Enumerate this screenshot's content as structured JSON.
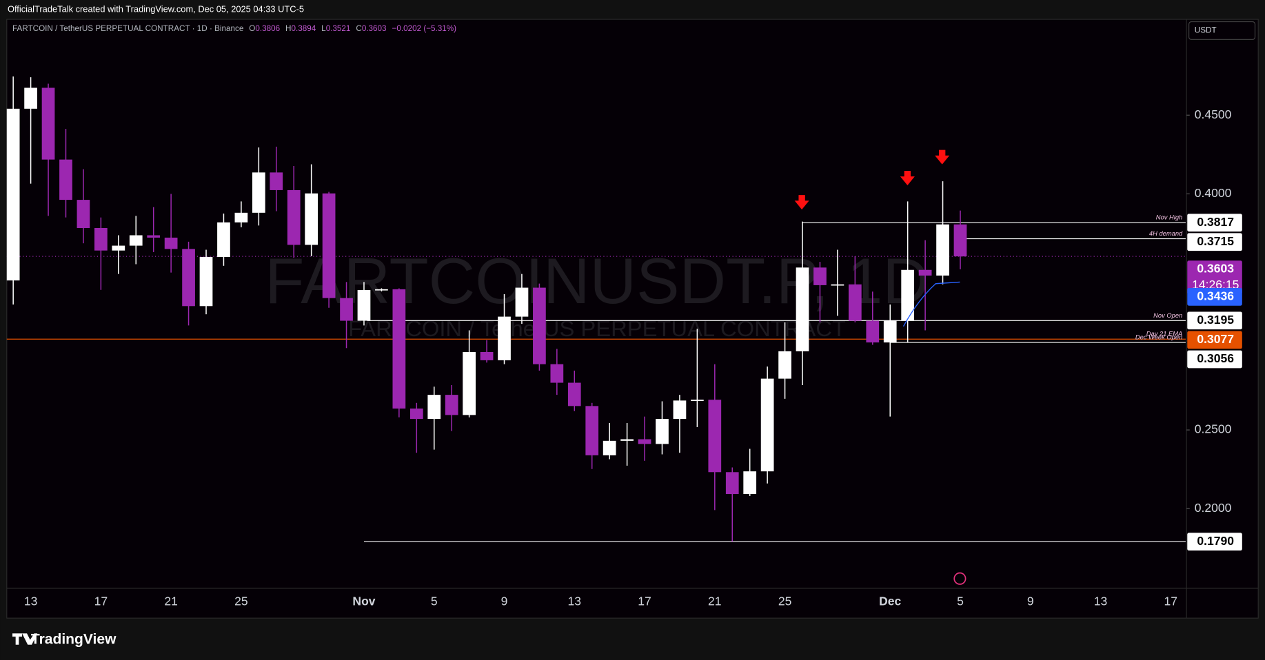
{
  "header": {
    "text": "OfficialTradeTalk created with TradingView.com, Dec 05, 2025 04:33 UTC-5"
  },
  "footer": {
    "brand": "TradingView"
  },
  "chart_data": {
    "type": "candlestick",
    "title": "FARTCOIN / TetherUS PERPETUAL CONTRACT · 1D · Binance",
    "legend_labels": {
      "open": "O",
      "high": "H",
      "low": "L",
      "close": "C"
    },
    "change_label": "−0.0202 (−5.31%)",
    "watermark": "FARTCOINUSDT.P, 1D",
    "watermark_subtitle": "FARTCOIN / TetherUS PERPETUAL CONTRACT",
    "currency": "USDT",
    "categories": [
      null,
      "13",
      null,
      null,
      null,
      "17",
      null,
      null,
      null,
      "21",
      null,
      null,
      null,
      "25",
      null,
      null,
      null,
      null,
      null,
      null,
      "Nov",
      null,
      null,
      null,
      "5",
      null,
      null,
      null,
      "9",
      null,
      null,
      null,
      "13",
      null,
      null,
      null,
      "17",
      null,
      null,
      null,
      "21",
      null,
      null,
      null,
      "25",
      null,
      null,
      null,
      null,
      null,
      "Dec",
      null,
      null,
      null,
      "5",
      null,
      null,
      null,
      "9",
      null,
      null,
      null,
      "13",
      null,
      null,
      null,
      "17"
    ],
    "open": [
      0.345,
      0.4541,
      0.4674,
      0.4218,
      0.3962,
      0.3783,
      0.364,
      0.3671,
      0.3737,
      0.3722,
      0.365,
      0.3287,
      0.3599,
      0.3819,
      0.388,
      0.4136,
      0.4024,
      0.3676,
      0.4003,
      0.3338,
      0.3194,
      0.3389,
      0.3394,
      0.2636,
      0.257,
      0.2723,
      0.2595,
      0.2995,
      0.2943,
      0.322,
      0.3404,
      0.2918,
      0.28,
      0.2652,
      0.2339,
      0.2431,
      0.2441,
      0.2411,
      0.257,
      0.2687,
      0.2692,
      0.2232,
      0.2093,
      0.2237,
      0.2826,
      0.3,
      0.3532,
      0.342,
      0.3425,
      0.3194,
      0.3056,
      0.3194,
      0.3517,
      0.3481,
      0.3806,
      null,
      null,
      null,
      null,
      null,
      null,
      null,
      null,
      null,
      null,
      null,
      null
    ],
    "high": [
      0.4746,
      0.4741,
      0.47,
      0.4413,
      0.4157,
      0.385,
      0.3737,
      0.386,
      0.3916,
      0.4,
      0.3696,
      0.3645,
      0.3875,
      0.3952,
      0.4295,
      0.43,
      0.4177,
      0.4188,
      0.4013,
      0.344,
      0.344,
      0.34,
      0.34,
      0.2672,
      0.2775,
      0.2785,
      0.3133,
      0.3071,
      0.3363,
      0.3491,
      0.343,
      0.3015,
      0.2877,
      0.2672,
      0.2544,
      0.2544,
      0.2585,
      0.2682,
      0.2723,
      0.3143,
      0.2918,
      0.2262,
      0.238,
      0.2903,
      0.3184,
      0.3824,
      0.3568,
      0.3645,
      0.3604,
      0.3379,
      0.3297,
      0.3952,
      0.3706,
      0.408,
      0.3894,
      null,
      null,
      null,
      null,
      null,
      null,
      null,
      null,
      null,
      null,
      null,
      null
    ],
    "low": [
      0.3297,
      0.4065,
      0.386,
      0.385,
      0.3686,
      0.339,
      0.3491,
      0.3553,
      0.363,
      0.35,
      0.3164,
      0.3235,
      0.3543,
      0.3788,
      0.3799,
      0.389,
      0.3594,
      0.3604,
      0.3276,
      0.302,
      0.3164,
      0.338,
      0.258,
      0.2355,
      0.2375,
      0.2493,
      0.258,
      0.2928,
      0.2918,
      0.3174,
      0.2877,
      0.2723,
      0.262,
      0.2252,
      0.2314,
      0.2273,
      0.2304,
      0.2345,
      0.2355,
      0.2518,
      0.1991,
      0.179,
      0.208,
      0.216,
      0.2698,
      0.2785,
      0.3184,
      0.3225,
      0.3184,
      0.3041,
      0.2585,
      0.3056,
      0.3133,
      0.3425,
      0.3521,
      null,
      null,
      null,
      null,
      null,
      null,
      null,
      null,
      null,
      null,
      null,
      null
    ],
    "close": [
      0.4541,
      0.4674,
      0.4218,
      0.3962,
      0.3783,
      0.364,
      0.3671,
      0.3737,
      0.3722,
      0.365,
      0.3287,
      0.3599,
      0.3819,
      0.388,
      0.4136,
      0.4024,
      0.3676,
      0.4003,
      0.3338,
      0.3194,
      0.3389,
      0.3394,
      0.2636,
      0.257,
      0.2723,
      0.2595,
      0.2995,
      0.2943,
      0.322,
      0.3404,
      0.2918,
      0.28,
      0.2652,
      0.2339,
      0.2431,
      0.2441,
      0.2411,
      0.257,
      0.2687,
      0.2692,
      0.2232,
      0.2093,
      0.2237,
      0.2826,
      0.3,
      0.3532,
      0.342,
      0.3425,
      0.3194,
      0.3056,
      0.3194,
      0.3517,
      0.3481,
      0.3806,
      0.3603,
      null,
      null,
      null,
      null,
      null,
      null,
      null,
      null,
      null,
      null,
      null,
      null
    ],
    "up_color": "#ffffff",
    "down_color": "#9c27b0",
    "ylim": [
      0.1494,
      0.5109
    ],
    "yticks": [
      {
        "value": 0.45,
        "label": "0.4500"
      },
      {
        "value": 0.4,
        "label": "0.4000"
      },
      {
        "value": 0.25,
        "label": "0.2500"
      },
      {
        "value": 0.2,
        "label": "0.2000"
      }
    ],
    "grid": false,
    "levels": [
      {
        "name": "Nov High",
        "value": 0.3817,
        "label": "0.3817",
        "color": "#ffffff"
      },
      {
        "name": "4H demand",
        "value": 0.3715,
        "label": "0.3715",
        "color": "#ffffff"
      },
      {
        "name": "Nov Open",
        "value": 0.3195,
        "label": "0.3195",
        "color": "#ffffff"
      },
      {
        "name": "Day 21 EMA",
        "value": 0.3077,
        "label": "0.3077",
        "color": "#e65100"
      },
      {
        "name": "Dec Week Open",
        "value": 0.3056,
        "label": "0.3056",
        "color": "#ffffff"
      },
      {
        "value": 0.179,
        "label": "0.1790",
        "color": "#ffffff"
      }
    ],
    "last_price": {
      "value": 0.3603,
      "label": "0.3603",
      "countdown": "14:26:15",
      "color": "#9c27b0"
    },
    "ma_price": {
      "value": 0.3436,
      "label": "0.3436",
      "color": "#2962ff"
    }
  }
}
